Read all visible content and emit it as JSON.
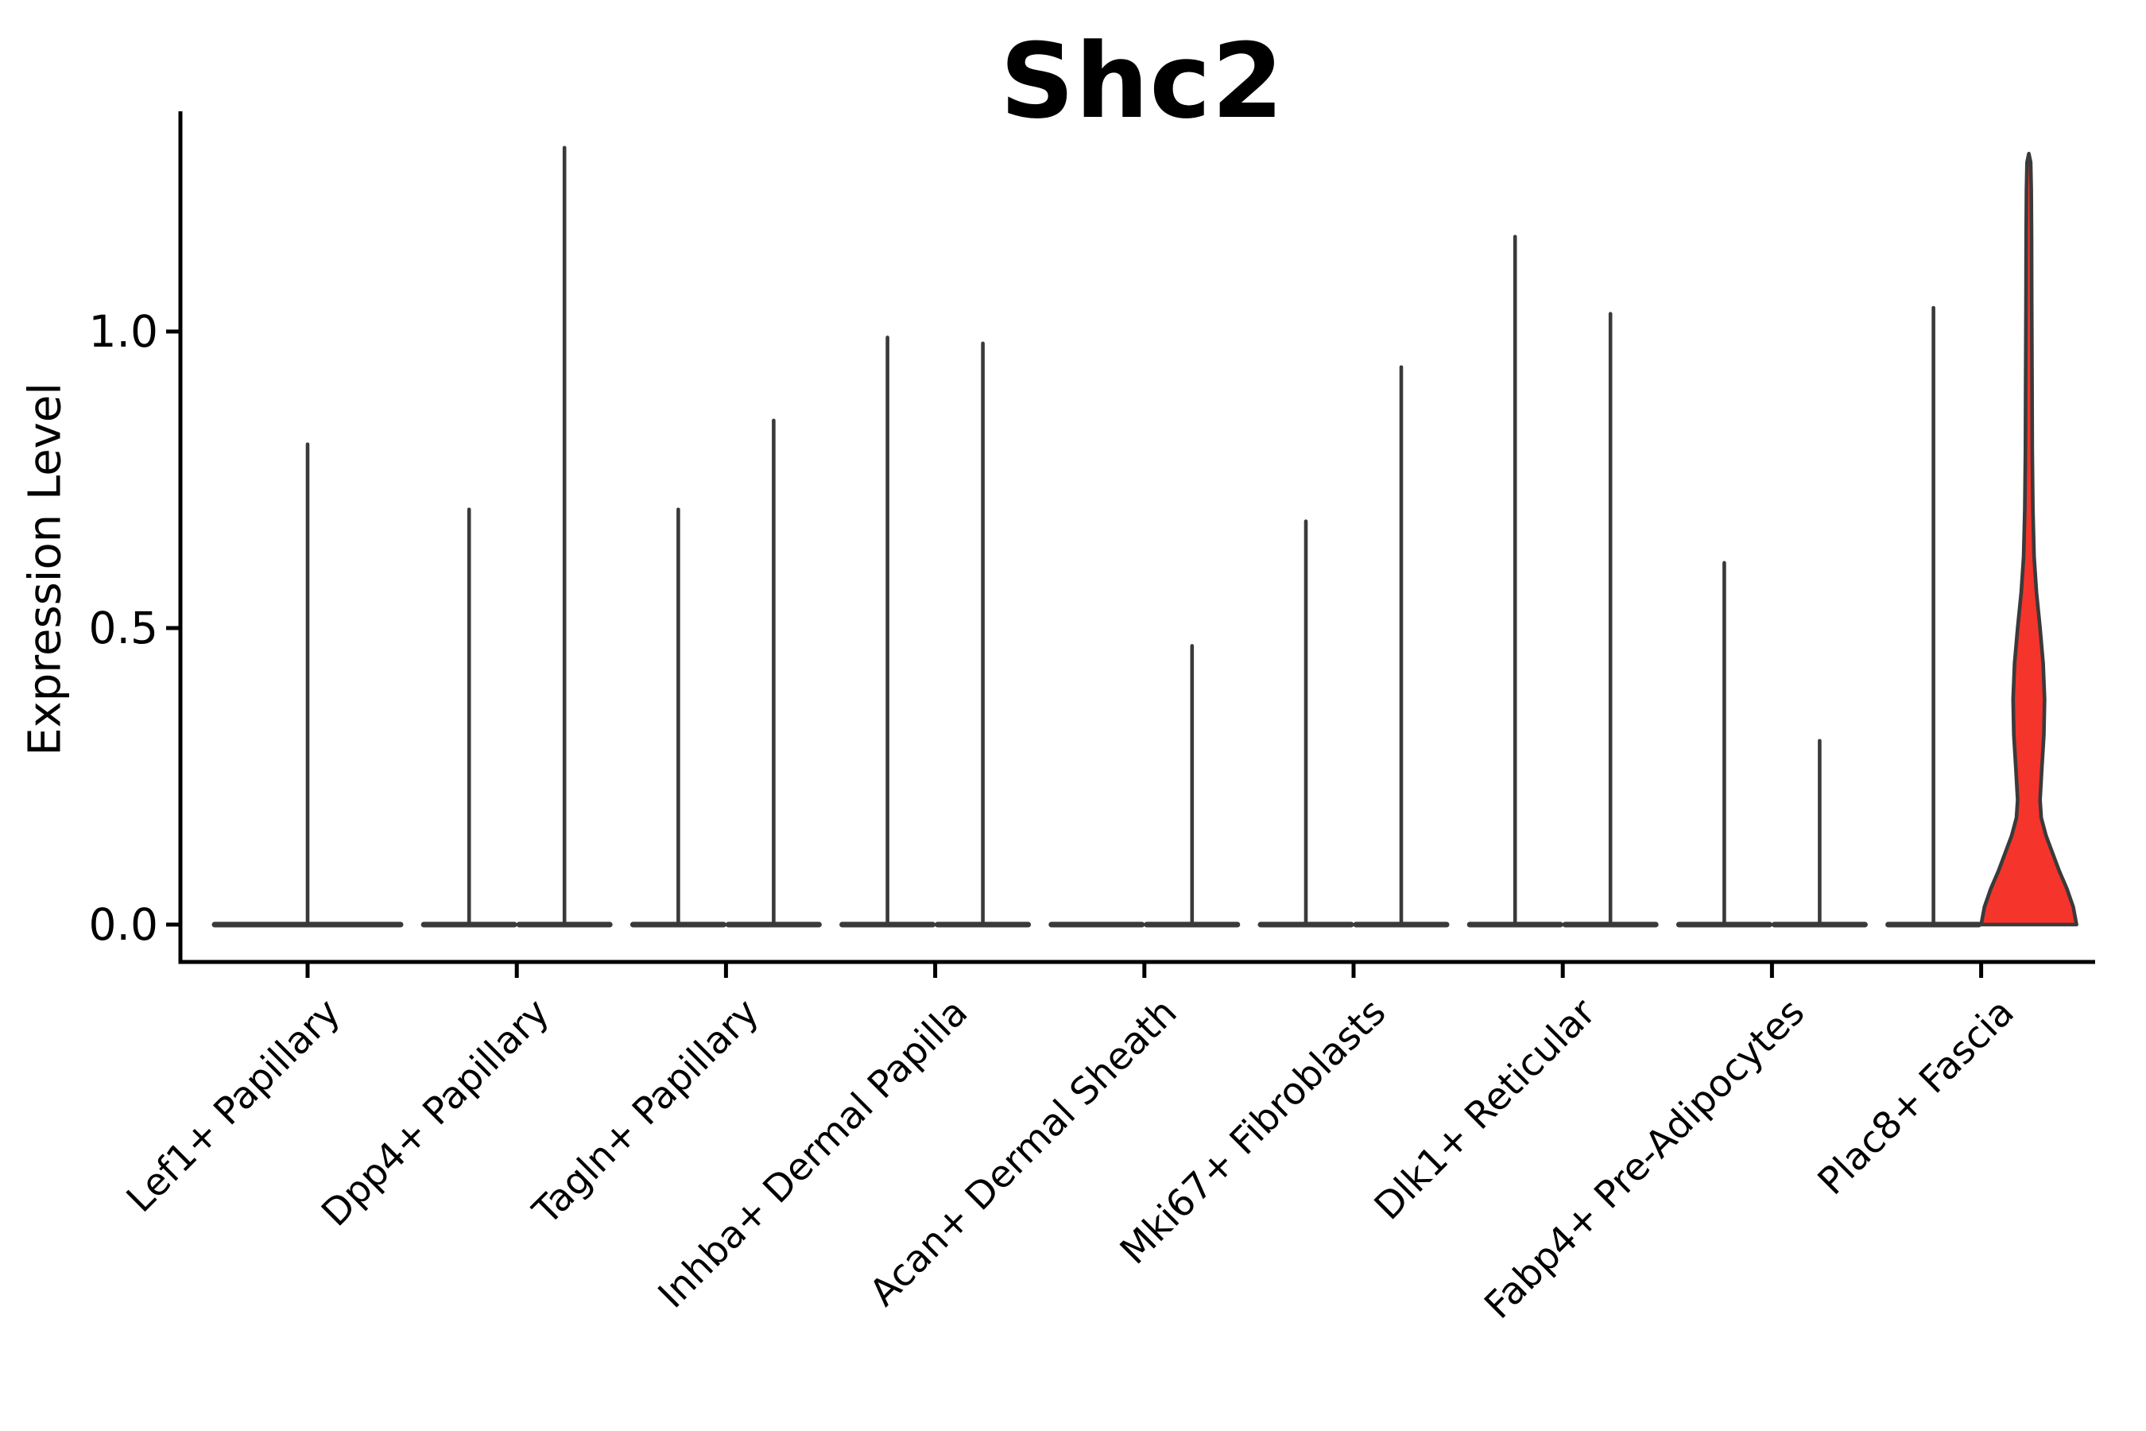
{
  "figure": {
    "title": "Shc2",
    "background": "#FFFFFF"
  },
  "axes": {
    "y_label": "Expression Level",
    "y_tick_labels": [
      "0.0",
      "0.5",
      "1.0"
    ]
  },
  "chart_data": {
    "type": "violin",
    "title": "Shc2",
    "xlabel": "",
    "ylabel": "Expression Level",
    "y_ticks": [
      0.0,
      0.5,
      1.0
    ],
    "ylim": [
      -0.06,
      1.37
    ],
    "grid": false,
    "legend": false,
    "categories": [
      "Lef1+ Papillary",
      "Dpp4+ Papillary",
      "Tagln+ Papillary",
      "Inhba+ Dermal Papilla",
      "Acan+ Dermal Sheath",
      "Mki67+ Fibroblasts",
      "Dlk1+ Reticular",
      "Fabp4+ Pre-Adipocytes",
      "Plac8+ Fascia"
    ],
    "violins": [
      {
        "category_index": 0,
        "slot": "full",
        "max": 0.81,
        "filled": false
      },
      {
        "category_index": 1,
        "slot": "left",
        "max": 0.7,
        "filled": false
      },
      {
        "category_index": 1,
        "slot": "right",
        "max": 1.31,
        "filled": false
      },
      {
        "category_index": 2,
        "slot": "left",
        "max": 0.7,
        "filled": false
      },
      {
        "category_index": 2,
        "slot": "right",
        "max": 0.85,
        "filled": false
      },
      {
        "category_index": 3,
        "slot": "left",
        "max": 0.99,
        "filled": false
      },
      {
        "category_index": 3,
        "slot": "right",
        "max": 0.98,
        "filled": false
      },
      {
        "category_index": 4,
        "slot": "left",
        "max": 0.0,
        "filled": false
      },
      {
        "category_index": 4,
        "slot": "right",
        "max": 0.47,
        "filled": false
      },
      {
        "category_index": 5,
        "slot": "left",
        "max": 0.68,
        "filled": false
      },
      {
        "category_index": 5,
        "slot": "right",
        "max": 0.94,
        "filled": false
      },
      {
        "category_index": 6,
        "slot": "left",
        "max": 1.16,
        "filled": false
      },
      {
        "category_index": 6,
        "slot": "right",
        "max": 1.03,
        "filled": false
      },
      {
        "category_index": 7,
        "slot": "left",
        "max": 0.61,
        "filled": false
      },
      {
        "category_index": 7,
        "slot": "right",
        "max": 0.31,
        "filled": false
      },
      {
        "category_index": 8,
        "slot": "left",
        "max": 1.04,
        "filled": false
      },
      {
        "category_index": 8,
        "slot": "right",
        "max": 1.3,
        "filled": true,
        "fill_color": "#F5342B",
        "density_profile": [
          [
            0.0,
            1.0
          ],
          [
            0.03,
            0.93
          ],
          [
            0.06,
            0.8
          ],
          [
            0.09,
            0.64
          ],
          [
            0.12,
            0.5
          ],
          [
            0.15,
            0.36
          ],
          [
            0.18,
            0.26
          ],
          [
            0.21,
            0.235
          ],
          [
            0.26,
            0.27
          ],
          [
            0.32,
            0.315
          ],
          [
            0.38,
            0.33
          ],
          [
            0.44,
            0.3
          ],
          [
            0.5,
            0.235
          ],
          [
            0.56,
            0.16
          ],
          [
            0.62,
            0.11
          ],
          [
            0.7,
            0.085
          ],
          [
            0.8,
            0.072
          ],
          [
            0.92,
            0.066
          ],
          [
            1.05,
            0.06
          ],
          [
            1.16,
            0.057
          ],
          [
            1.24,
            0.05
          ],
          [
            1.285,
            0.038
          ],
          [
            1.3,
            0.0
          ]
        ]
      }
    ],
    "colors": {
      "violin_outline": "#3A3A3A",
      "highlight_fill": "#F5342B",
      "axis": "#000000"
    }
  }
}
